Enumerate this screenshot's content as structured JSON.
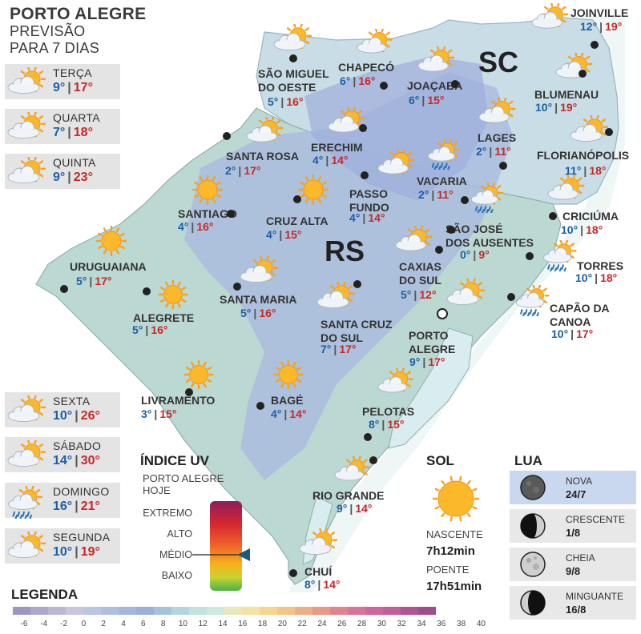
{
  "header": {
    "city": "PORTO ALEGRE",
    "line1": "PREVISÃO",
    "line2": "PARA 7 DIAS"
  },
  "forecast": [
    {
      "day": "TERÇA",
      "min": "9°",
      "max": "17°",
      "icon": "partly-cloudy-icon"
    },
    {
      "day": "QUARTA",
      "min": "7°",
      "max": "18°",
      "icon": "partly-cloudy-icon"
    },
    {
      "day": "QUINTA",
      "min": "9°",
      "max": "23°",
      "icon": "partly-cloudy-icon"
    },
    {
      "day": "SEXTA",
      "min": "10°",
      "max": "26°",
      "icon": "partly-cloudy-icon"
    },
    {
      "day": "SÁBADO",
      "min": "14°",
      "max": "30°",
      "icon": "partly-cloudy-icon"
    },
    {
      "day": "DOMINGO",
      "min": "16°",
      "max": "21°",
      "icon": "sun-cloud-rain-icon"
    },
    {
      "day": "SEGUNDA",
      "min": "10°",
      "max": "19°",
      "icon": "partly-cloudy-icon"
    }
  ],
  "states": {
    "sc": "SC",
    "rs": "RS"
  },
  "cities": [
    {
      "name": "JOINVILLE",
      "min": "12°",
      "max": "19°",
      "icon": "partly-cloudy-icon"
    },
    {
      "name": "SÃO MIGUEL\nDO OESTE",
      "min": "5°",
      "max": "16°",
      "icon": "partly-cloudy-icon"
    },
    {
      "name": "CHAPECÓ",
      "min": "6°",
      "max": "16°",
      "icon": "partly-cloudy-icon"
    },
    {
      "name": "JOAÇABA",
      "min": "6°",
      "max": "15°",
      "icon": "partly-cloudy-icon"
    },
    {
      "name": "BLUMENAU",
      "min": "10°",
      "max": "19°",
      "icon": "partly-cloudy-icon"
    },
    {
      "name": "LAGES",
      "min": "2°",
      "max": "11°",
      "icon": "partly-cloudy-icon"
    },
    {
      "name": "FLORIANÓPOLIS",
      "min": "11°",
      "max": "18°",
      "icon": "partly-cloudy-icon"
    },
    {
      "name": "SANTA ROSA",
      "min": "2°",
      "max": "17°",
      "icon": "partly-cloudy-icon"
    },
    {
      "name": "ERECHIM",
      "min": "4°",
      "max": "14°",
      "icon": "partly-cloudy-icon"
    },
    {
      "name": "VACARIA",
      "min": "2°",
      "max": "11°",
      "icon": "sun-cloud-rain-icon"
    },
    {
      "name": "SANTIAGO",
      "min": "4°",
      "max": "16°",
      "icon": "sun-icon"
    },
    {
      "name": "CRUZ ALTA",
      "min": "4°",
      "max": "15°",
      "icon": "sun-icon"
    },
    {
      "name": "PASSO\nFUNDO",
      "min": "4°",
      "max": "14°",
      "icon": "partly-cloudy-icon"
    },
    {
      "name": "CRICIÚMA",
      "min": "10°",
      "max": "18°",
      "icon": "partly-cloudy-icon"
    },
    {
      "name": "SÃO JOSÉ\nDOS AUSENTES",
      "min": "0°",
      "max": "9°",
      "icon": "sun-cloud-rain-icon"
    },
    {
      "name": "URUGUAIANA",
      "min": "5°",
      "max": "17°",
      "icon": "sun-icon"
    },
    {
      "name": "TORRES",
      "min": "10°",
      "max": "18°",
      "icon": "sun-cloud-rain-icon"
    },
    {
      "name": "CAXIAS\nDO SUL",
      "min": "5°",
      "max": "12°",
      "icon": "partly-cloudy-icon"
    },
    {
      "name": "SANTA MARIA",
      "min": "5°",
      "max": "16°",
      "icon": "partly-cloudy-icon"
    },
    {
      "name": "ALEGRETE",
      "min": "5°",
      "max": "16°",
      "icon": "sun-icon"
    },
    {
      "name": "CAPÃO DA\nCANOA",
      "min": "10°",
      "max": "17°",
      "icon": "sun-cloud-rain-icon"
    },
    {
      "name": "SANTA CRUZ\nDO SUL",
      "min": "7°",
      "max": "17°",
      "icon": "partly-cloudy-icon"
    },
    {
      "name": "PORTO\nALEGRE",
      "min": "9°",
      "max": "17°",
      "icon": "partly-cloudy-icon"
    },
    {
      "name": "LIVRAMENTO",
      "min": "3°",
      "max": "15°",
      "icon": "sun-icon"
    },
    {
      "name": "BAGÉ",
      "min": "4°",
      "max": "14°",
      "icon": "sun-icon"
    },
    {
      "name": "PELOTAS",
      "min": "8°",
      "max": "15°",
      "icon": "partly-cloudy-icon"
    },
    {
      "name": "RIO GRANDE",
      "min": "9°",
      "max": "14°",
      "icon": "partly-cloudy-icon"
    },
    {
      "name": "CHUÍ",
      "min": "8°",
      "max": "14°",
      "icon": "partly-cloudy-icon"
    }
  ],
  "uv": {
    "title": "ÍNDICE UV",
    "sub1": "PORTO ALEGRE",
    "sub2": "HOJE",
    "levels": [
      "EXTREMO",
      "ALTO",
      "MÉDIO",
      "BAIXO"
    ],
    "current_level": "MÉDIO",
    "colors": [
      "#8e1d5c",
      "#d7262f",
      "#f0652a",
      "#f6b21a",
      "#c9d430",
      "#4bb04a"
    ]
  },
  "sol": {
    "title": "SOL",
    "sunrise_label": "NASCENTE",
    "sunrise": "7h12min",
    "sunset_label": "POENTE",
    "sunset": "17h51min",
    "icon": "sun-icon"
  },
  "lua": {
    "title": "LUA",
    "phases": [
      {
        "name": "NOVA",
        "date": "24/7",
        "icon": "new-moon-icon"
      },
      {
        "name": "CRESCENTE",
        "date": "1/8",
        "icon": "first-quarter-moon-icon"
      },
      {
        "name": "CHEIA",
        "date": "9/8",
        "icon": "full-moon-icon"
      },
      {
        "name": "MINGUANTE",
        "date": "16/8",
        "icon": "last-quarter-moon-icon"
      }
    ]
  },
  "legend": {
    "title": "LEGENDA",
    "ticks": [
      "-6",
      "-4",
      "-2",
      "0",
      "2",
      "4",
      "6",
      "8",
      "10",
      "12",
      "14",
      "16",
      "18",
      "20",
      "22",
      "24",
      "26",
      "28",
      "30",
      "32",
      "34",
      "36",
      "38",
      "40"
    ],
    "colors": [
      "#9e95c3",
      "#aea6cd",
      "#bcb6d6",
      "#c8c6df",
      "#b9c5e2",
      "#aebfe0",
      "#a4b6dc",
      "#9ab0d8",
      "#a6c3de",
      "#b4d5df",
      "#c1e2e0",
      "#cde9df",
      "#ece7b9",
      "#f4e2a2",
      "#f6d68c",
      "#f4c487",
      "#efae85",
      "#e89a86",
      "#e08590",
      "#d87399",
      "#cf669c",
      "#c45e9a",
      "#b25494",
      "#a04c8d"
    ]
  }
}
